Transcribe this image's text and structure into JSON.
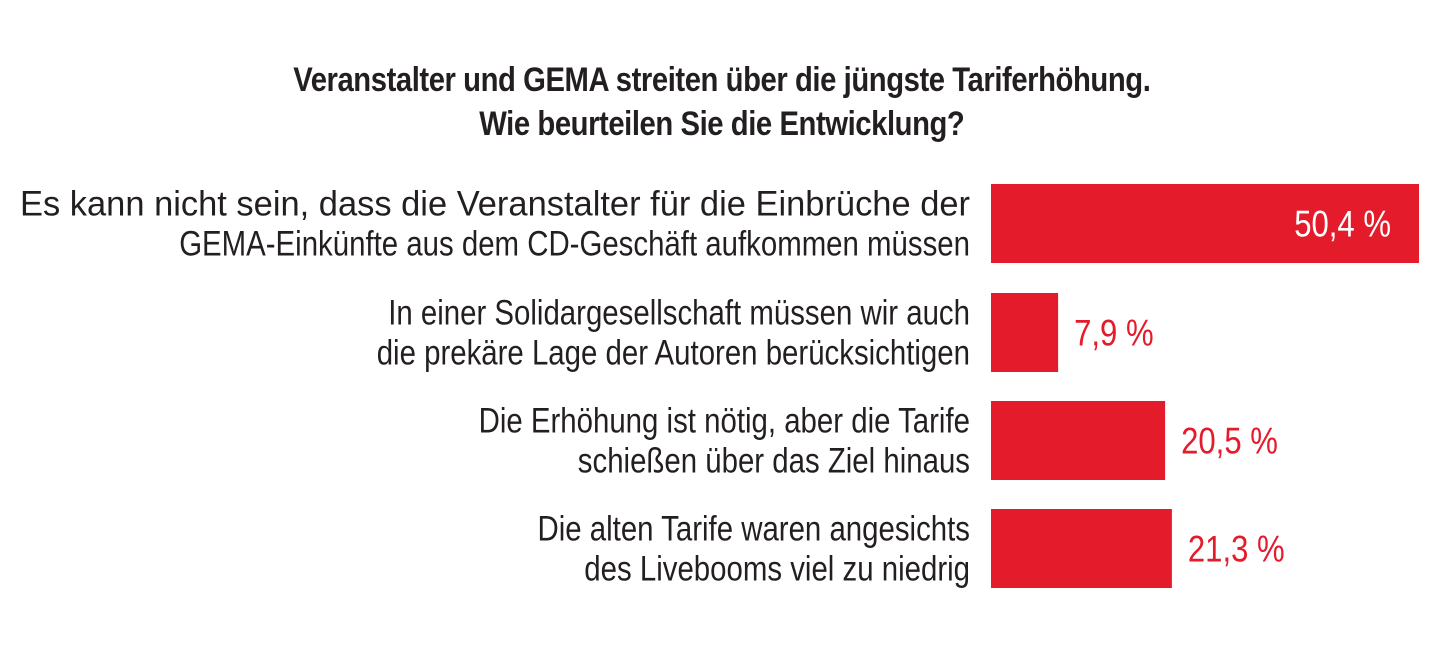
{
  "chart_data": {
    "type": "bar",
    "orientation": "horizontal",
    "title": "Veranstalter und GEMA streiten über die jüngste Tariferhöhung.",
    "subtitle": "Wie beurteilen Sie die Entwicklung?",
    "categories": [
      [
        "Es kann nicht sein, dass die Veranstalter für die Einbrüche der",
        "GEMA-Einkünfte aus dem CD-Geschäft aufkommen müssen"
      ],
      [
        "In einer Solidargesellschaft müssen wir auch",
        "die prekäre Lage der Autoren berücksichtigen"
      ],
      [
        "Die Erhöhung ist nötig, aber die Tarife",
        "schießen über das Ziel hinaus"
      ],
      [
        "Die alten Tarife waren angesichts",
        "des Livebooms viel zu niedrig"
      ]
    ],
    "values": [
      50.4,
      7.9,
      20.5,
      21.3
    ],
    "value_labels": [
      "50,4 %",
      "7,9 %",
      "20,5 %",
      "21,3 %"
    ],
    "xlim": [
      0,
      50.4
    ],
    "grid": false,
    "legend": "none",
    "bar_color": "#e31b2b",
    "inside_label_color": "#ffffff",
    "text_color": "#231f20"
  }
}
